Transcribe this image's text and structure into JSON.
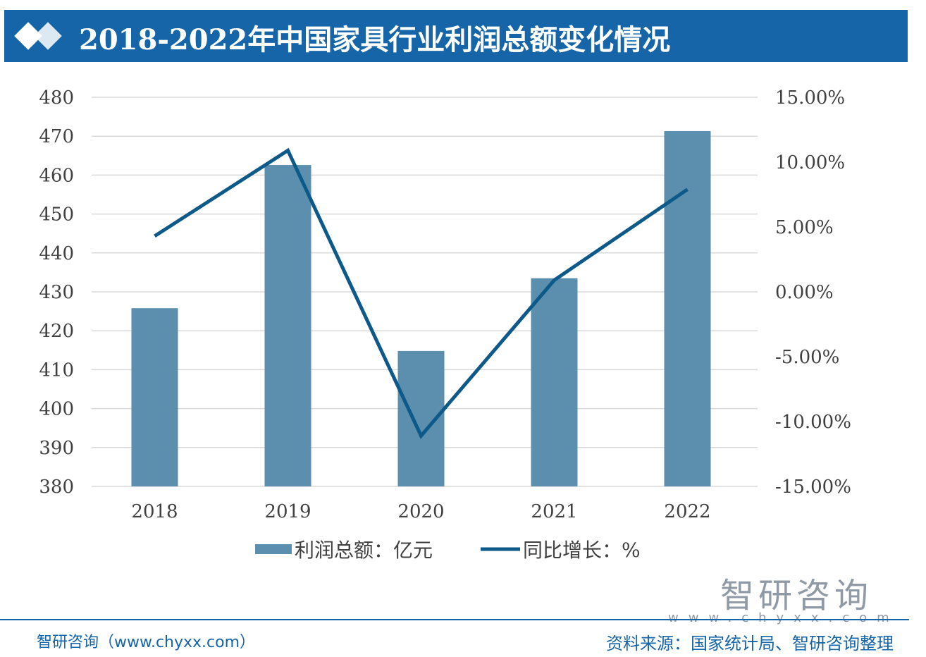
{
  "header": {
    "title": "2018-2022年中国家具行业利润总额变化情况"
  },
  "chart_data": {
    "type": "bar+line",
    "title": "2018-2022年中国家具行业利润总额变化情况",
    "categories": [
      "2018",
      "2019",
      "2020",
      "2021",
      "2022"
    ],
    "series": [
      {
        "name": "利润总额：亿元",
        "type": "bar",
        "axis": "left",
        "values": [
          425.8,
          462.6,
          414.8,
          433.5,
          471.3
        ],
        "color": "#5b8fad"
      },
      {
        "name": "同比增长：%",
        "type": "line",
        "axis": "right",
        "values": [
          4.3,
          10.9,
          -11.1,
          0.9,
          7.9
        ],
        "color": "#0d5a8a"
      }
    ],
    "y_left": {
      "min": 380,
      "max": 480,
      "ticks": [
        "480",
        "470",
        "460",
        "450",
        "440",
        "430",
        "420",
        "410",
        "400",
        "390",
        "380"
      ]
    },
    "y_right": {
      "min": -15,
      "max": 15,
      "ticks": [
        "15.00%",
        "10.00%",
        "5.00%",
        "0.00%",
        "-5.00%",
        "-10.00%",
        "-15.00%"
      ]
    },
    "grid": true,
    "legend": "bottom"
  },
  "footer": {
    "left": "智研咨询（www.chyxx.com）",
    "right": "资料来源：国家统计局、智研咨询整理",
    "brand": "智研咨询",
    "brand_url": "www.chyxx.com"
  },
  "colors": {
    "banner": "#1565a8",
    "bar": "#5b8fad",
    "line": "#0d5a8a"
  }
}
